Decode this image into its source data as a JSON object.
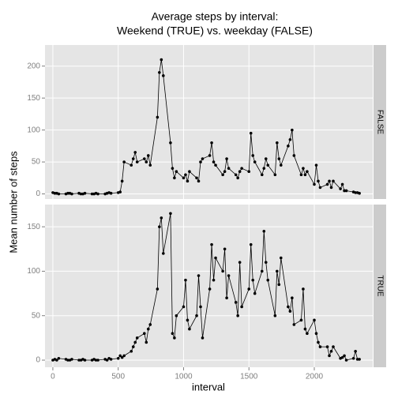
{
  "chart_data": {
    "type": "line",
    "title": [
      "Average steps by interval:",
      "Weekend (TRUE) vs. weekday (FALSE)"
    ],
    "xlabel": "interval",
    "ylabel": "Mean number of steps",
    "xlim": [
      -60,
      2447
    ],
    "xticks": [
      0,
      500,
      1000,
      1500,
      2000
    ],
    "grid": true,
    "color": "#000000",
    "x": [
      0,
      15,
      30,
      45,
      100,
      115,
      130,
      145,
      200,
      215,
      230,
      245,
      300,
      315,
      330,
      345,
      400,
      415,
      430,
      445,
      500,
      515,
      530,
      545,
      600,
      615,
      630,
      645,
      700,
      715,
      730,
      745,
      800,
      815,
      830,
      845,
      900,
      915,
      930,
      945,
      1000,
      1015,
      1030,
      1045,
      1100,
      1115,
      1130,
      1145,
      1200,
      1215,
      1230,
      1245,
      1300,
      1315,
      1330,
      1345,
      1400,
      1415,
      1430,
      1445,
      1500,
      1515,
      1530,
      1545,
      1600,
      1615,
      1630,
      1645,
      1700,
      1715,
      1730,
      1745,
      1800,
      1815,
      1830,
      1845,
      1900,
      1915,
      1930,
      1945,
      2000,
      2015,
      2030,
      2045,
      2100,
      2115,
      2130,
      2145,
      2200,
      2215,
      2230,
      2245,
      2300,
      2315,
      2330,
      2345
    ],
    "facets": [
      {
        "name": "FALSE",
        "ylim": [
          -8,
          233
        ],
        "yticks": [
          0,
          50,
          100,
          150,
          200
        ],
        "values": [
          2,
          1,
          1,
          0,
          0,
          1,
          1,
          0,
          1,
          0,
          0,
          1,
          0,
          0,
          1,
          0,
          0,
          1,
          2,
          1,
          2,
          3,
          20,
          50,
          45,
          55,
          65,
          50,
          55,
          50,
          60,
          45,
          120,
          190,
          210,
          185,
          80,
          40,
          25,
          35,
          25,
          30,
          20,
          35,
          25,
          20,
          50,
          55,
          60,
          80,
          50,
          45,
          30,
          35,
          55,
          40,
          30,
          25,
          35,
          40,
          35,
          95,
          60,
          50,
          30,
          40,
          55,
          45,
          30,
          80,
          55,
          45,
          75,
          85,
          100,
          60,
          30,
          40,
          30,
          35,
          15,
          45,
          20,
          10,
          15,
          20,
          10,
          20,
          8,
          15,
          5,
          5,
          3,
          2,
          2,
          1
        ]
      },
      {
        "name": "TRUE",
        "ylim": [
          -8,
          175
        ],
        "yticks": [
          0,
          50,
          100,
          150
        ],
        "values": [
          0,
          1,
          0,
          2,
          1,
          0,
          0,
          1,
          0,
          0,
          1,
          0,
          0,
          1,
          0,
          0,
          1,
          0,
          2,
          1,
          2,
          5,
          3,
          5,
          10,
          15,
          20,
          25,
          30,
          20,
          35,
          40,
          80,
          150,
          160,
          120,
          165,
          30,
          25,
          50,
          60,
          90,
          45,
          35,
          50,
          95,
          60,
          25,
          80,
          130,
          90,
          115,
          100,
          125,
          70,
          95,
          65,
          50,
          110,
          60,
          80,
          130,
          90,
          75,
          100,
          145,
          110,
          90,
          50,
          100,
          85,
          115,
          60,
          55,
          70,
          40,
          45,
          80,
          35,
          30,
          45,
          30,
          20,
          15,
          15,
          5,
          10,
          15,
          2,
          3,
          5,
          0,
          2,
          10,
          1,
          1
        ]
      }
    ]
  }
}
